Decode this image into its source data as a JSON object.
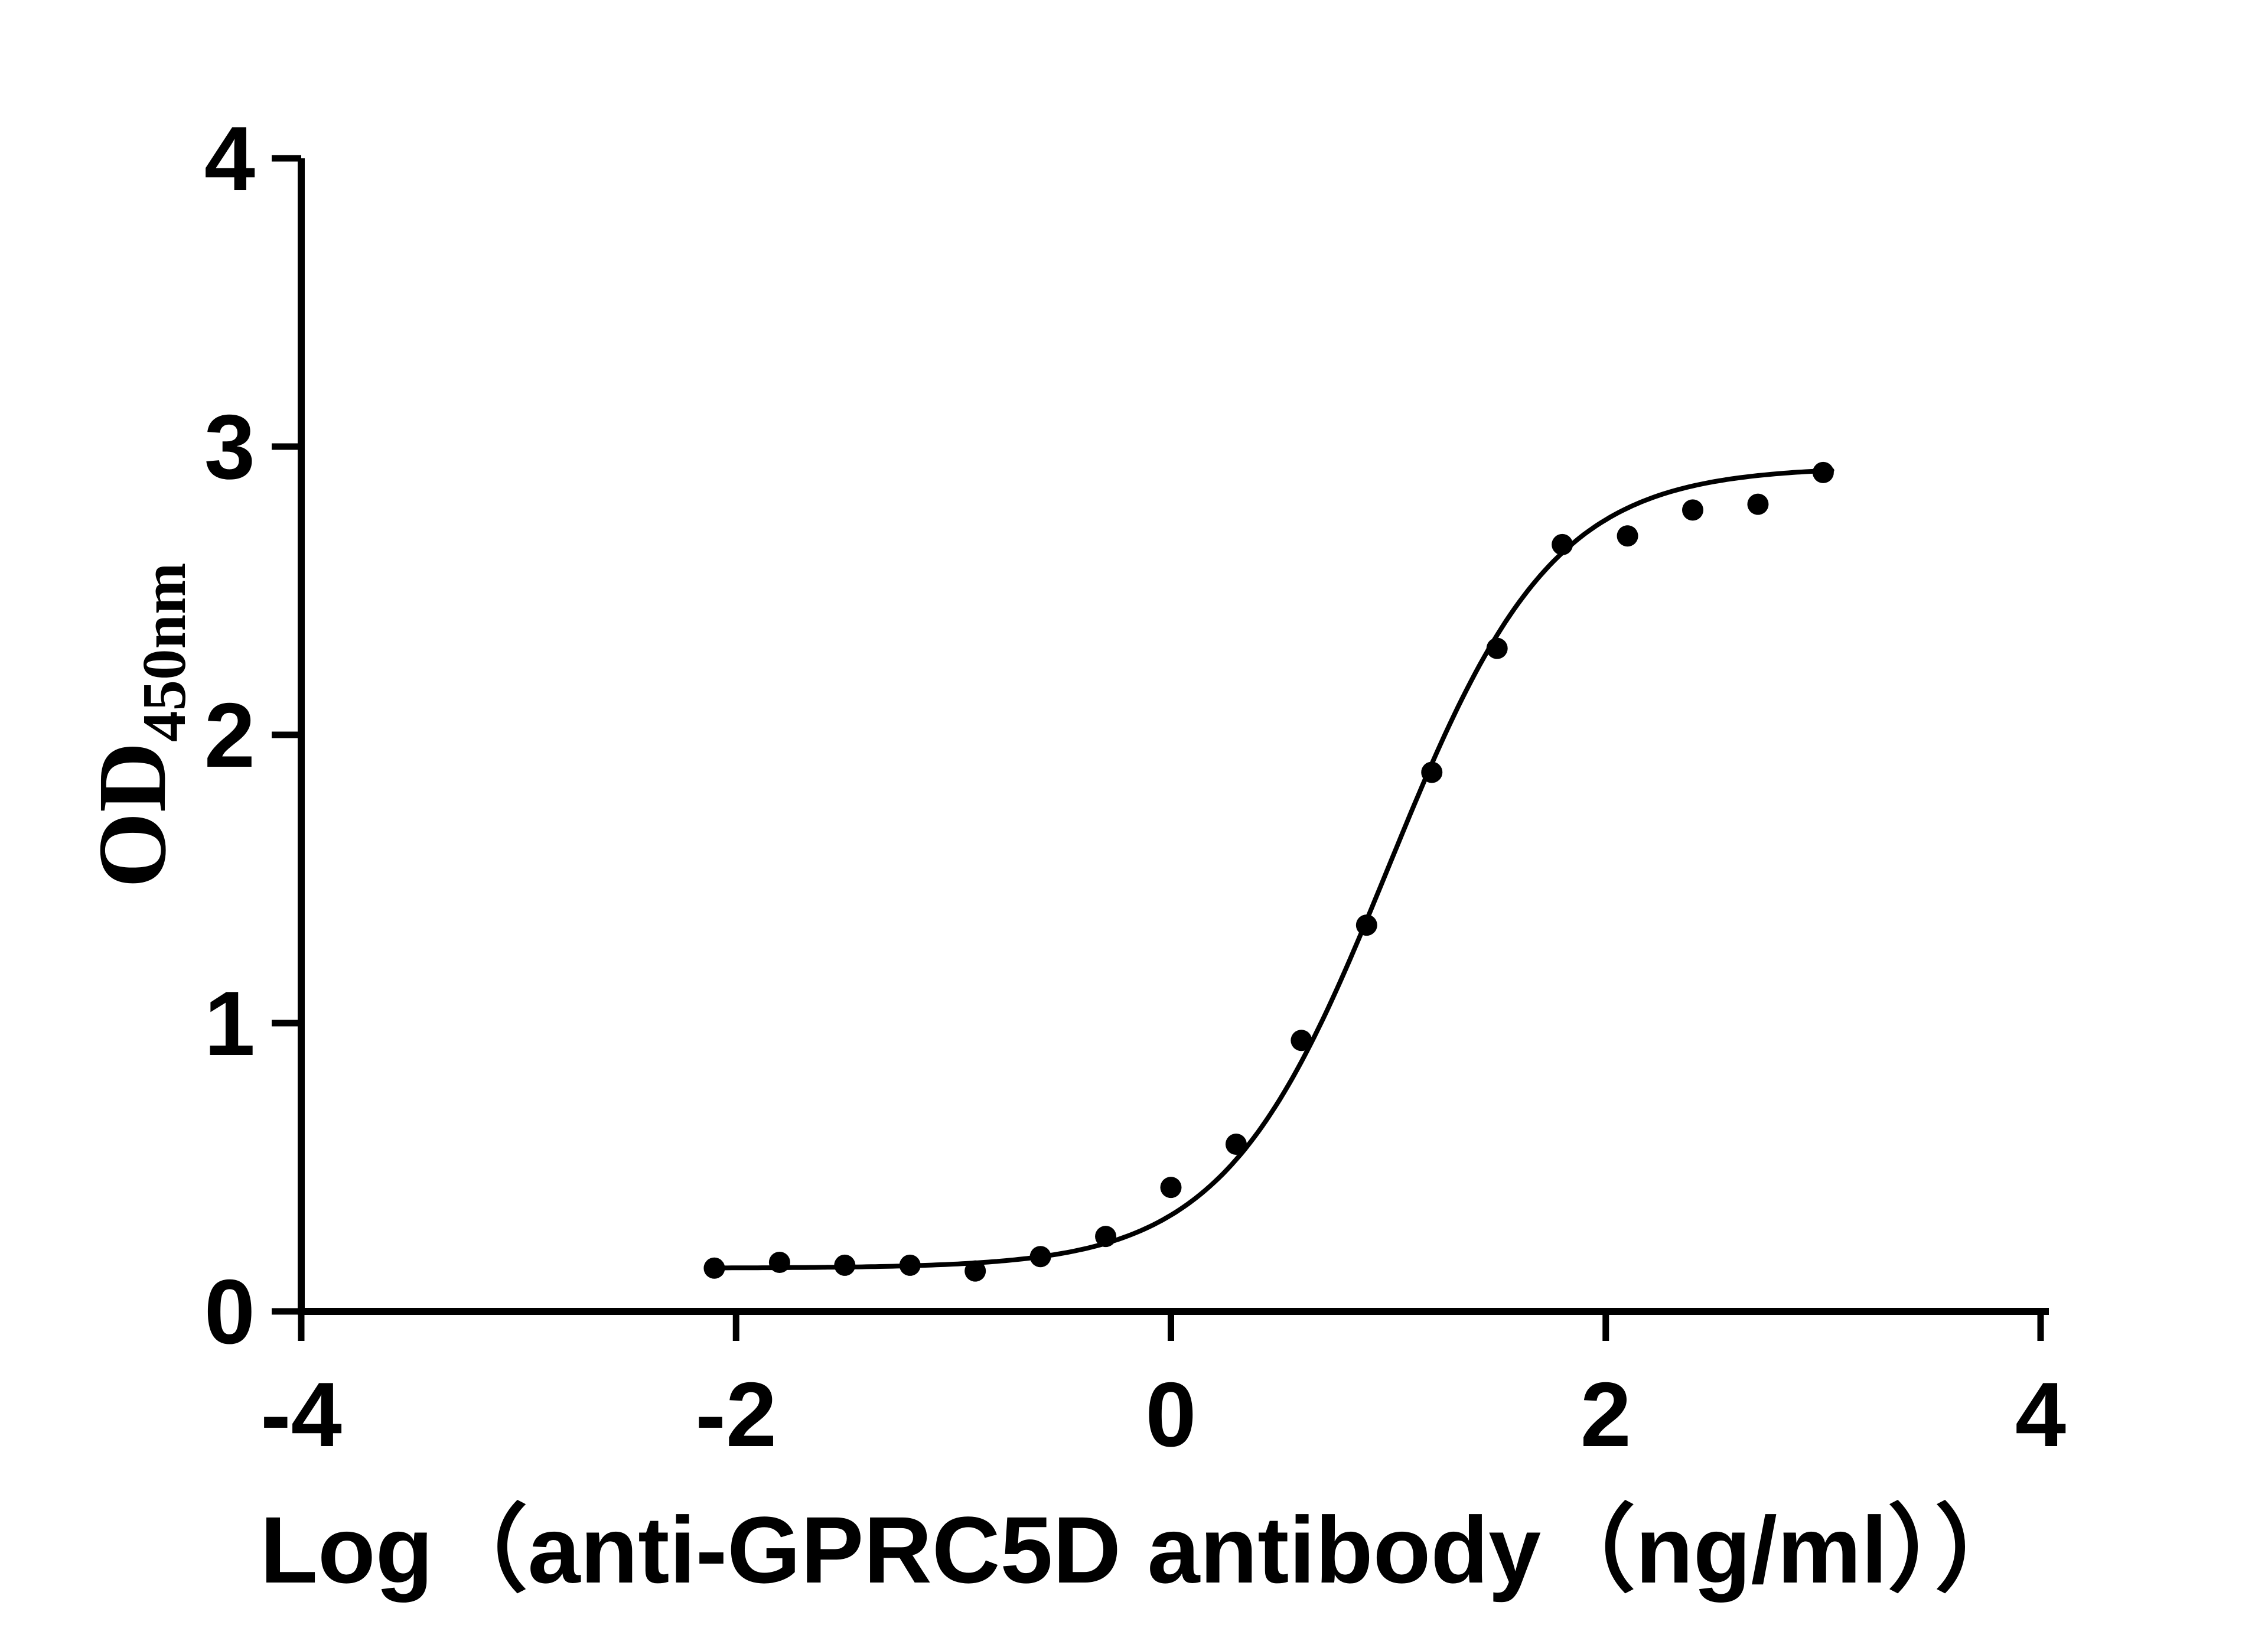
{
  "chart_data": {
    "type": "scatter",
    "title": "",
    "xlabel": "Log（anti-GPRC5D antibody（ng/ml））",
    "ylabel_base": "OD",
    "ylabel_sub": "450nm",
    "xlim": [
      -4,
      4
    ],
    "ylim": [
      0,
      4
    ],
    "xticks": [
      -4,
      -2,
      0,
      2,
      4
    ],
    "yticks": [
      0,
      1,
      2,
      3,
      4
    ],
    "grid": false,
    "legend": "none",
    "marker": "filled-circle",
    "colors": {
      "background": "#ffffff",
      "axis": "#000000",
      "curve": "#000000",
      "points": "#000000"
    },
    "points": [
      {
        "x": -2.1,
        "y": 0.15
      },
      {
        "x": -1.8,
        "y": 0.17
      },
      {
        "x": -1.5,
        "y": 0.16
      },
      {
        "x": -1.2,
        "y": 0.16
      },
      {
        "x": -0.9,
        "y": 0.14
      },
      {
        "x": -0.6,
        "y": 0.19
      },
      {
        "x": -0.3,
        "y": 0.26
      },
      {
        "x": 0.0,
        "y": 0.43
      },
      {
        "x": 0.3,
        "y": 0.58
      },
      {
        "x": 0.6,
        "y": 0.94
      },
      {
        "x": 0.9,
        "y": 1.34
      },
      {
        "x": 1.2,
        "y": 1.87
      },
      {
        "x": 1.5,
        "y": 2.3
      },
      {
        "x": 1.8,
        "y": 2.66
      },
      {
        "x": 2.1,
        "y": 2.69
      },
      {
        "x": 2.4,
        "y": 2.78
      },
      {
        "x": 2.7,
        "y": 2.8
      },
      {
        "x": 3.0,
        "y": 2.91
      }
    ],
    "fit_curve": {
      "model": "four-parameter-logistic",
      "bottom": 0.15,
      "top": 2.93,
      "log_ec50": 1.0,
      "hill_slope": 1.15,
      "x_range": [
        -2.12,
        3.05
      ]
    }
  }
}
